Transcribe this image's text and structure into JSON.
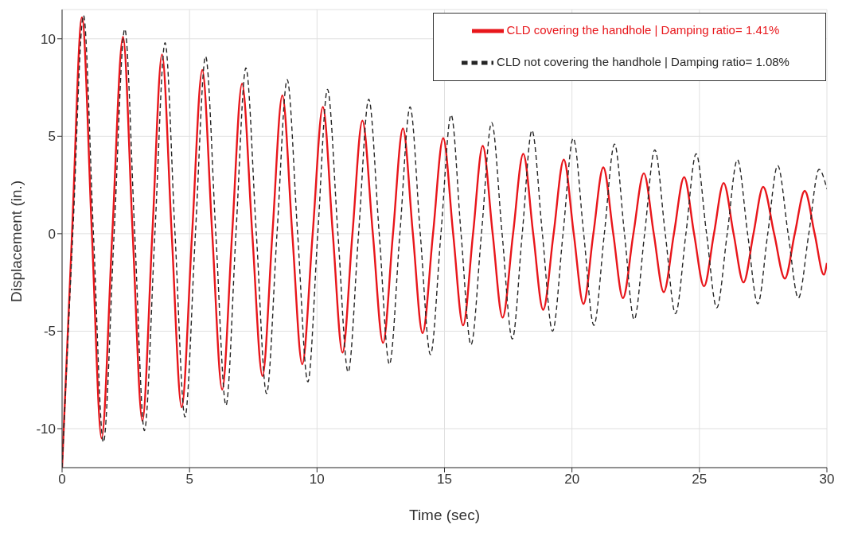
{
  "chart_data": {
    "type": "line",
    "xlabel": "Time (sec)",
    "ylabel": "Displacement (in.)",
    "xlim": [
      0,
      30
    ],
    "xticks": [
      0,
      5,
      10,
      15,
      20,
      25,
      30
    ],
    "ylim": [
      -12,
      11.5
    ],
    "yticks": [
      -10,
      -5,
      0,
      5,
      10
    ],
    "grid": true,
    "legend": "top right",
    "series": [
      {
        "name": "CLD covering the handhole | Damping ratio= 1.41%",
        "color": "#e8161b",
        "line_style": "solid",
        "x": [
          0,
          0.39,
          0.78,
          1.17,
          1.55,
          1.97,
          2.39,
          2.77,
          3.15,
          3.54,
          3.92,
          4.3,
          4.69,
          5.1,
          5.5,
          5.89,
          6.28,
          6.67,
          7.06,
          7.46,
          7.86,
          8.25,
          8.64,
          9.03,
          9.42,
          9.83,
          10.23,
          10.62,
          11.0,
          11.39,
          11.78,
          12.19,
          12.59,
          12.98,
          13.37,
          13.76,
          14.14,
          14.55,
          14.95,
          15.34,
          15.73,
          16.12,
          16.5,
          16.89,
          17.28,
          17.69,
          18.09,
          18.48,
          18.87,
          19.28,
          19.68,
          20.07,
          20.45,
          20.84,
          21.23,
          21.62,
          22.0,
          22.41,
          22.82,
          23.21,
          23.6,
          24.0,
          24.4,
          24.79,
          25.18,
          25.57,
          25.95,
          26.34,
          26.73,
          27.12,
          27.5,
          27.93,
          28.35,
          28.74,
          29.13,
          29.52,
          29.88,
          30
        ],
        "values": [
          -12,
          0,
          11.1,
          0,
          -10.5,
          0,
          10.1,
          0,
          -9.6,
          0,
          9.2,
          0,
          -8.9,
          0,
          8.4,
          0,
          -8,
          0,
          7.7,
          0,
          -7.3,
          0,
          7.1,
          0,
          -6.7,
          0,
          6.5,
          0,
          -6.1,
          0,
          5.8,
          0,
          -5.6,
          0,
          5.4,
          0,
          -5.1,
          0,
          4.9,
          0,
          -4.7,
          0,
          4.5,
          0,
          -4.3,
          0,
          4.1,
          0,
          -3.9,
          0,
          3.8,
          0,
          -3.6,
          0,
          3.4,
          0,
          -3.3,
          0,
          3.1,
          0,
          -3,
          0,
          2.9,
          0,
          -2.7,
          0,
          2.6,
          0,
          -2.5,
          0,
          2.4,
          0,
          -2.3,
          0,
          2.2,
          0,
          -2.1,
          -1.5
        ]
      },
      {
        "name": "CLD not covering the handhole | Damping ratio= 1.08%",
        "color": "#262626",
        "line_style": "dashed",
        "x": [
          0,
          0.42,
          0.84,
          1.23,
          1.62,
          2.04,
          2.46,
          2.85,
          3.23,
          3.64,
          4.04,
          4.43,
          4.82,
          5.23,
          5.63,
          6.03,
          6.43,
          6.82,
          7.21,
          7.62,
          8.02,
          8.43,
          8.83,
          9.24,
          9.64,
          10.03,
          10.41,
          10.82,
          11.22,
          11.63,
          12.03,
          12.44,
          12.84,
          13.25,
          13.65,
          14.05,
          14.45,
          14.86,
          15.26,
          15.65,
          16.04,
          16.45,
          16.85,
          17.26,
          17.66,
          18.05,
          18.43,
          18.84,
          19.24,
          19.65,
          20.05,
          20.46,
          20.86,
          21.27,
          21.67,
          22.06,
          22.44,
          22.85,
          23.25,
          23.66,
          24.06,
          24.47,
          24.87,
          25.28,
          25.68,
          26.09,
          26.49,
          26.89,
          27.29,
          27.68,
          28.07,
          28.48,
          28.88,
          29.29,
          29.69,
          30
        ],
        "values": [
          -12,
          0,
          11.2,
          0,
          -10.7,
          0,
          10.5,
          0,
          -10.1,
          0,
          9.8,
          0,
          -9.4,
          0,
          9.1,
          0,
          -8.8,
          0,
          8.5,
          0,
          -8.2,
          0,
          7.9,
          0,
          -7.6,
          0,
          7.4,
          0,
          -7.1,
          0,
          6.9,
          0,
          -6.7,
          0,
          6.5,
          0,
          -6.2,
          0,
          6.1,
          0,
          -5.7,
          0,
          5.7,
          0,
          -5.4,
          0,
          5.3,
          0,
          -5,
          0,
          4.9,
          0,
          -4.7,
          0,
          4.6,
          0,
          -4.4,
          0,
          4.3,
          0,
          -4.1,
          0,
          4.1,
          0,
          -3.8,
          0,
          3.8,
          0,
          -3.6,
          0,
          3.5,
          0,
          -3.3,
          0,
          3.3,
          2.3
        ]
      }
    ]
  }
}
